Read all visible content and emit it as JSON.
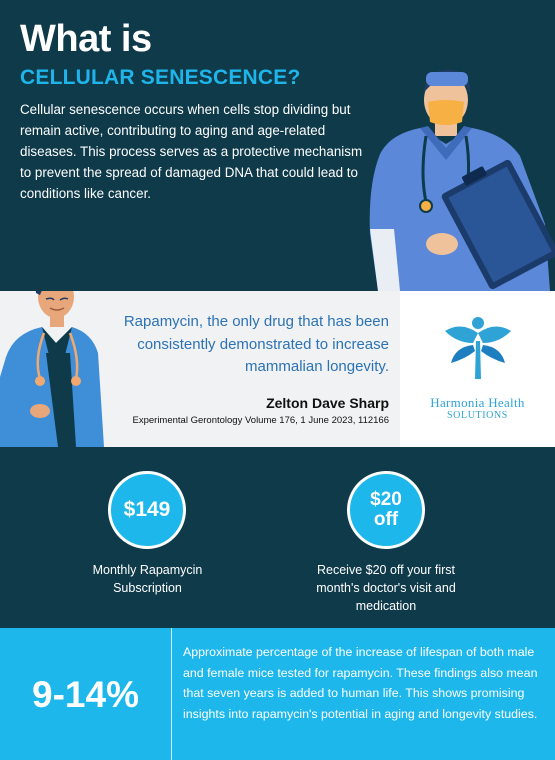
{
  "hero": {
    "title": "What is",
    "subtitle": "CELLULAR SENESCENCE?",
    "description": "Cellular senescence occurs when cells stop dividing but remain active, contributing to aging and age-related diseases. This process serves as a protective mechanism to prevent the spread of damaged DNA that could lead to conditions like cancer."
  },
  "quote": {
    "text": "Rapamycin, the only drug that has been consistently demonstrated to increase mammalian longevity.",
    "author": "Zelton Dave Sharp",
    "source": "Experimental Gerontology Volume 176, 1 June 2023, 112166"
  },
  "brand": {
    "name": "Harmonia Health",
    "tagline": "SOLUTIONS",
    "color": "#2fa3d6"
  },
  "offers": [
    {
      "price": "$149",
      "label": "Monthly Rapamycin\nSubscription"
    },
    {
      "price": "$20\noff",
      "label": "Receive $20 off your first\nmonth's doctor's visit and\nmedication"
    }
  ],
  "stat": {
    "value": "9-14%",
    "description": "Approximate percentage of the increase of lifespan of both male and female mice tested for rapamycin. These findings also mean that seven years is added to human life. This shows promising insights into rapamycin's potential in aging and longevity studies."
  },
  "colors": {
    "navy": "#0e3a4a",
    "accent": "#1db7ec",
    "quote_blue": "#2c72b6"
  }
}
